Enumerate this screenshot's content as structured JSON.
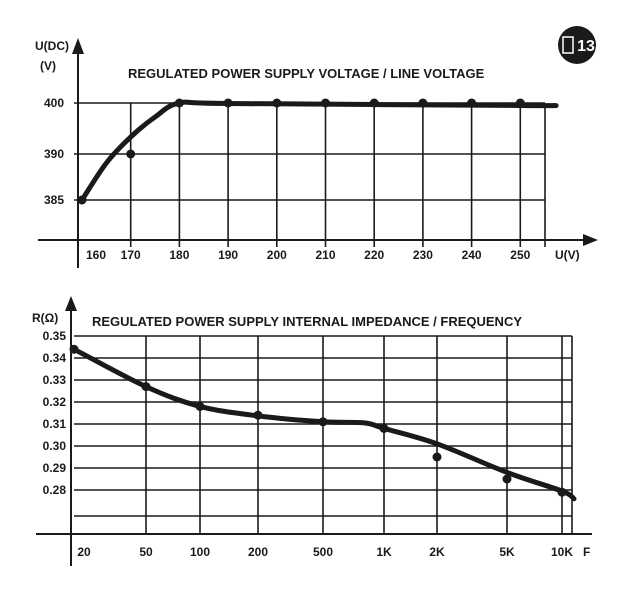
{
  "badge": {
    "text": "13",
    "icon": "figure-badge-icon"
  },
  "chart_data": [
    {
      "type": "line",
      "title": "REGULATED POWER SUPPLY VOLTAGE / LINE VOLTAGE",
      "ylabel_line1": "U(DC)",
      "ylabel_line2": "(V)",
      "xlabel": "U(V)",
      "x": [
        160,
        170,
        180,
        190,
        200,
        210,
        220,
        230,
        240,
        250
      ],
      "y": [
        385,
        390,
        400,
        400,
        400,
        400,
        400,
        400,
        400,
        400
      ],
      "x_ticks": [
        "160",
        "170",
        "180",
        "190",
        "200",
        "210",
        "220",
        "230",
        "240",
        "250"
      ],
      "y_ticks": [
        "385",
        "390",
        "400"
      ],
      "grid": true
    },
    {
      "type": "line",
      "title": "REGULATED POWER SUPPLY INTERNAL IMPEDANCE / FREQUENCY",
      "ylabel": "R(Ω)",
      "xlabel": "F",
      "x_scale": "log",
      "x": [
        20,
        50,
        100,
        200,
        500,
        1000,
        2000,
        5000,
        10000
      ],
      "x_ticks": [
        "20",
        "50",
        "100",
        "200",
        "500",
        "1K",
        "2K",
        "5K",
        "10K"
      ],
      "y": [
        0.344,
        0.327,
        0.318,
        0.314,
        0.311,
        0.308,
        0.295,
        0.285,
        0.279
      ],
      "y_ticks": [
        "0.35",
        "0.34",
        "0.33",
        "0.32",
        "0.31",
        "0.30",
        "0.29",
        "0.28"
      ],
      "grid": true
    }
  ]
}
